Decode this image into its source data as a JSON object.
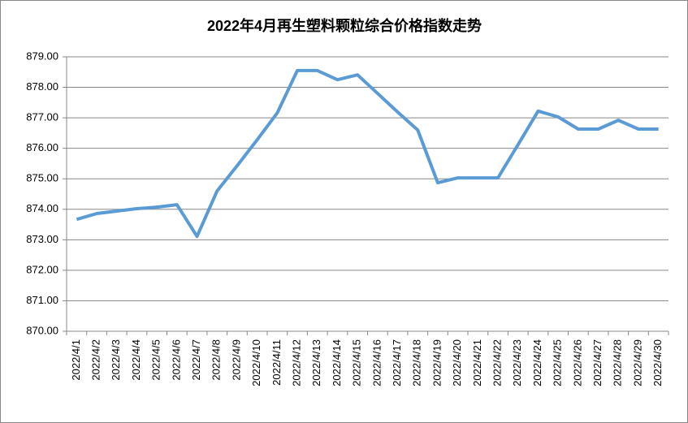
{
  "chart_data": {
    "type": "line",
    "title": "2022年4月再生塑料颗粒综合价格指数走势",
    "categories": [
      "2022/4/1",
      "2022/4/2",
      "2022/4/3",
      "2022/4/4",
      "2022/4/5",
      "2022/4/6",
      "2022/4/7",
      "2022/4/8",
      "2022/4/9",
      "2022/4/10",
      "2022/4/11",
      "2022/4/12",
      "2022/4/13",
      "2022/4/14",
      "2022/4/15",
      "2022/4/16",
      "2022/4/17",
      "2022/4/18",
      "2022/4/19",
      "2022/4/20",
      "2022/4/21",
      "2022/4/22",
      "2022/4/23",
      "2022/4/24",
      "2022/4/25",
      "2022/4/26",
      "2022/4/27",
      "2022/4/28",
      "2022/4/29",
      "2022/4/30"
    ],
    "values": [
      873.67,
      873.86,
      873.94,
      874.02,
      874.07,
      874.15,
      873.11,
      874.6,
      875.43,
      876.28,
      877.16,
      878.55,
      878.55,
      878.25,
      878.41,
      877.8,
      877.19,
      876.6,
      874.87,
      875.03,
      875.03,
      875.03,
      876.12,
      877.22,
      877.03,
      876.63,
      876.63,
      876.92,
      876.63,
      876.63
    ],
    "color": "#5b9bd5",
    "ylim": [
      870,
      879
    ],
    "yticks": [
      {
        "value": 870,
        "label": "870.00"
      },
      {
        "value": 871,
        "label": "871.00"
      },
      {
        "value": 872,
        "label": "872.00"
      },
      {
        "value": 873,
        "label": "873.00"
      },
      {
        "value": 874,
        "label": "874.00"
      },
      {
        "value": 875,
        "label": "875.00"
      },
      {
        "value": 876,
        "label": "876.00"
      },
      {
        "value": 877,
        "label": "877.00"
      },
      {
        "value": 878,
        "label": "878.00"
      },
      {
        "value": 879,
        "label": "879.00"
      }
    ],
    "grid": true
  }
}
